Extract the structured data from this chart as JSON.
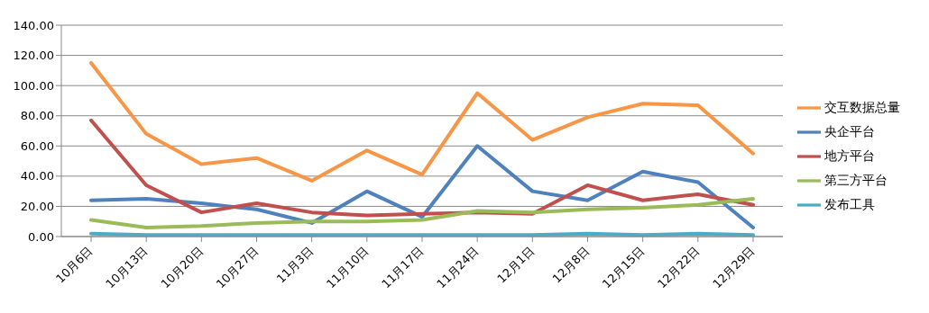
{
  "chart_data": {
    "type": "line",
    "categories": [
      "10月6日",
      "10月13日",
      "10月20日",
      "10月27日",
      "11月3日",
      "11月10日",
      "11月17日",
      "11月24日",
      "12月1日",
      "12月8日",
      "12月15日",
      "12月22日",
      "12月29日"
    ],
    "series": [
      {
        "name": "交互数据总量",
        "color": "#f79646",
        "values": [
          115,
          68,
          48,
          52,
          37,
          57,
          41,
          95,
          64,
          79,
          88,
          87,
          55
        ]
      },
      {
        "name": "央企平台",
        "color": "#4f81bd",
        "values": [
          24,
          25,
          22,
          18,
          9,
          30,
          13,
          60,
          30,
          24,
          43,
          36,
          6
        ]
      },
      {
        "name": "地方平台",
        "color": "#c0504d",
        "values": [
          77,
          34,
          16,
          22,
          16,
          14,
          15,
          16,
          15,
          34,
          24,
          28,
          21
        ]
      },
      {
        "name": "第三方平台",
        "color": "#9bbb59",
        "values": [
          11,
          6,
          7,
          9,
          10,
          10,
          11,
          17,
          16,
          18,
          19,
          21,
          25
        ]
      },
      {
        "name": "发布工具",
        "color": "#4bacc6",
        "values": [
          2,
          1,
          1,
          1,
          1,
          1,
          1,
          1,
          1,
          2,
          1,
          2,
          1
        ]
      }
    ],
    "ylim": [
      0,
      140
    ],
    "yticks": [
      {
        "value": 0,
        "label": "0.00"
      },
      {
        "value": 20,
        "label": "20.00"
      },
      {
        "value": 40,
        "label": "40.00"
      },
      {
        "value": 60,
        "label": "60.00"
      },
      {
        "value": 80,
        "label": "80.00"
      },
      {
        "value": 100,
        "label": "100.00"
      },
      {
        "value": 120,
        "label": "120.00"
      },
      {
        "value": 140,
        "label": "140.00"
      }
    ],
    "grid": "y",
    "legend": "right",
    "marker": "none",
    "line_style": "solid"
  }
}
